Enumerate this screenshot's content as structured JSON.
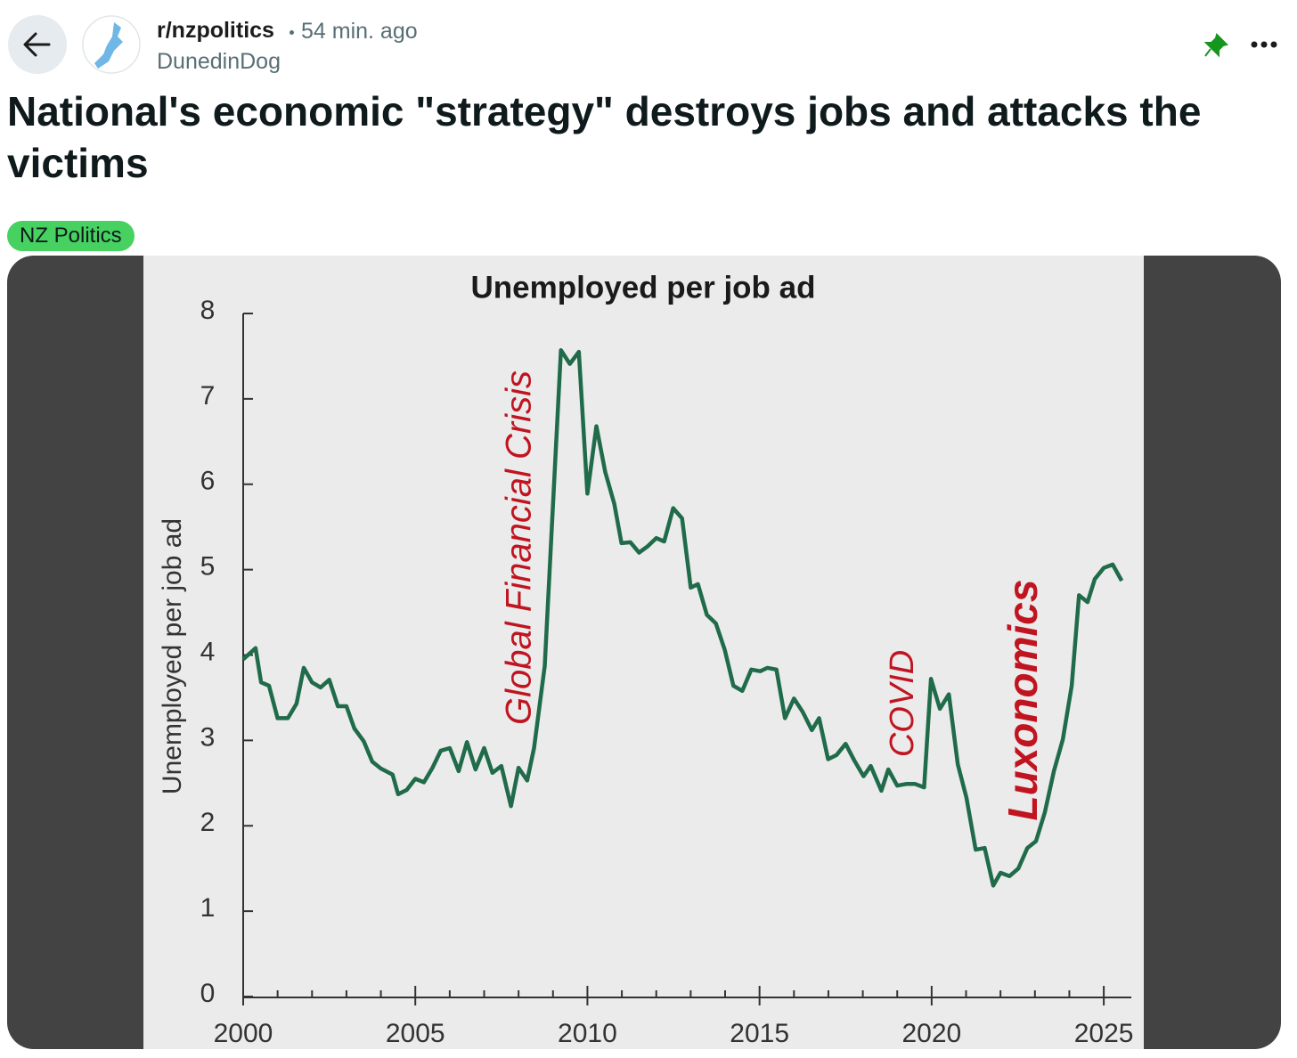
{
  "post": {
    "subreddit": "r/nzpolitics",
    "time": "54 min. ago",
    "author": "DunedinDog",
    "title": "National's economic \"strategy\" destroys jobs and attacks the victims",
    "flair": "NZ Politics"
  },
  "chart_data": {
    "type": "line",
    "title": "Unemployed per job ad",
    "y_label": "Unemployed per job ad",
    "color": "#1f6b4a",
    "x": [
      2000.0,
      2000.36,
      2000.52,
      2000.75,
      2001.0,
      2001.3,
      2001.55,
      2001.76,
      2002.0,
      2002.25,
      2002.5,
      2002.75,
      2003.0,
      2003.23,
      2003.5,
      2003.75,
      2004.0,
      2004.34,
      2004.5,
      2004.75,
      2005.0,
      2005.25,
      2005.5,
      2005.74,
      2006.0,
      2006.26,
      2006.5,
      2006.75,
      2007.0,
      2007.24,
      2007.5,
      2007.78,
      2008.0,
      2008.25,
      2008.45,
      2008.76,
      2008.97,
      2009.23,
      2009.49,
      2009.75,
      2010.0,
      2010.26,
      2010.52,
      2010.78,
      2010.99,
      2011.25,
      2011.5,
      2011.74,
      2012.0,
      2012.23,
      2012.49,
      2012.75,
      2013.0,
      2013.21,
      2013.47,
      2013.73,
      2013.99,
      2014.24,
      2014.5,
      2014.76,
      2015.02,
      2015.23,
      2015.49,
      2015.74,
      2016.0,
      2016.26,
      2016.52,
      2016.73,
      2016.99,
      2017.24,
      2017.5,
      2017.76,
      2018.02,
      2018.23,
      2018.54,
      2018.74,
      2019.0,
      2019.26,
      2019.52,
      2019.78,
      2019.98,
      2020.24,
      2020.5,
      2020.76,
      2021.01,
      2021.28,
      2021.54,
      2021.79,
      2022.0,
      2022.26,
      2022.52,
      2022.78,
      2023.03,
      2023.29,
      2023.55,
      2023.81,
      2024.07,
      2024.28,
      2024.53,
      2024.74,
      2025.0,
      2025.26,
      2025.52
    ],
    "values": [
      3.95,
      4.08,
      3.68,
      3.64,
      3.26,
      3.26,
      3.43,
      3.85,
      3.68,
      3.62,
      3.71,
      3.4,
      3.4,
      3.14,
      2.99,
      2.75,
      2.67,
      2.6,
      2.37,
      2.42,
      2.55,
      2.51,
      2.68,
      2.88,
      2.91,
      2.64,
      2.98,
      2.66,
      2.91,
      2.62,
      2.7,
      2.23,
      2.68,
      2.53,
      2.91,
      3.87,
      5.52,
      7.57,
      7.41,
      7.55,
      5.89,
      6.68,
      6.14,
      5.77,
      5.31,
      5.32,
      5.2,
      5.27,
      5.37,
      5.33,
      5.72,
      5.6,
      4.79,
      4.83,
      4.47,
      4.37,
      4.06,
      3.64,
      3.58,
      3.83,
      3.81,
      3.85,
      3.83,
      3.26,
      3.49,
      3.33,
      3.12,
      3.26,
      2.78,
      2.83,
      2.96,
      2.76,
      2.58,
      2.7,
      2.41,
      2.66,
      2.47,
      2.49,
      2.49,
      2.45,
      3.72,
      3.37,
      3.54,
      2.72,
      2.33,
      1.72,
      1.74,
      1.3,
      1.45,
      1.41,
      1.5,
      1.74,
      1.82,
      2.16,
      2.64,
      3.01,
      3.64,
      4.7,
      4.62,
      4.89,
      5.02,
      5.06,
      4.87
    ],
    "xlim": [
      2000,
      2025.8
    ],
    "ylim": [
      0,
      8
    ],
    "xticks": [
      2000,
      2005,
      2010,
      2015,
      2020,
      2025
    ],
    "xticks_minor": [
      2001,
      2002,
      2003,
      2004,
      2006,
      2007,
      2008,
      2009,
      2011,
      2012,
      2013,
      2014,
      2016,
      2017,
      2018,
      2019,
      2021,
      2022,
      2023,
      2024
    ],
    "yticks": [
      0,
      1,
      2,
      3,
      4,
      5,
      6,
      7,
      8
    ],
    "annotations": [
      "Global Financial Crisis",
      "COVID",
      "Luxonomics"
    ]
  }
}
